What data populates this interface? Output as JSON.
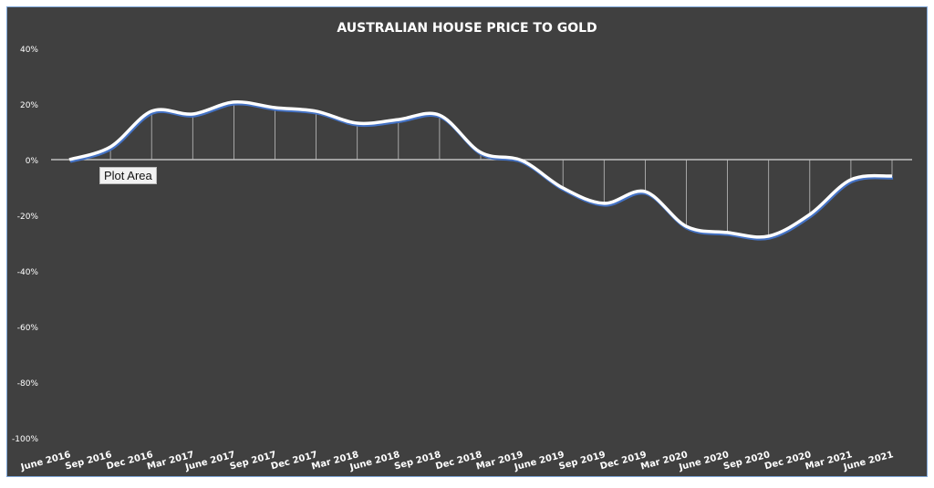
{
  "chart_data": {
    "type": "line",
    "title": "AUSTRALIAN HOUSE PRICE TO GOLD",
    "xlabel": "",
    "ylabel": "",
    "ylim": [
      -100,
      40
    ],
    "yticks": [
      "40%",
      "20%",
      "0%",
      "-20%",
      "-40%",
      "-60%",
      "-80%",
      "-100%"
    ],
    "ytick_values": [
      40,
      20,
      0,
      -20,
      -40,
      -60,
      -80,
      -100
    ],
    "categories": [
      "June 2016",
      "Sep 2016",
      "Dec 2016",
      "Mar 2017",
      "June 2017",
      "Sep 2017",
      "Dec 2017",
      "Mar 2018",
      "June 2018",
      "Sep 2018",
      "Dec 2018",
      "Mar 2019",
      "June 2019",
      "Sep 2019",
      "Dec 2019",
      "Mar 2020",
      "June 2020",
      "Sep 2020",
      "Dec 2020",
      "Mar 2021",
      "June 2021"
    ],
    "series": [
      {
        "name": "House price to gold",
        "values": [
          0,
          4.6,
          17.4,
          16.4,
          20.7,
          18.7,
          17.4,
          13.1,
          14.4,
          16.0,
          2.6,
          -0.3,
          -10.2,
          -15.7,
          -11.5,
          -24.0,
          -26.2,
          -27.5,
          -19.7,
          -7.2,
          -5.9
        ]
      }
    ],
    "grid": false,
    "drop_lines": true,
    "colors": {
      "background": "#404040",
      "line": "#ffffff",
      "shadow": "#4472c4",
      "text": "#ffffff"
    }
  },
  "tooltip": "Plot Area"
}
